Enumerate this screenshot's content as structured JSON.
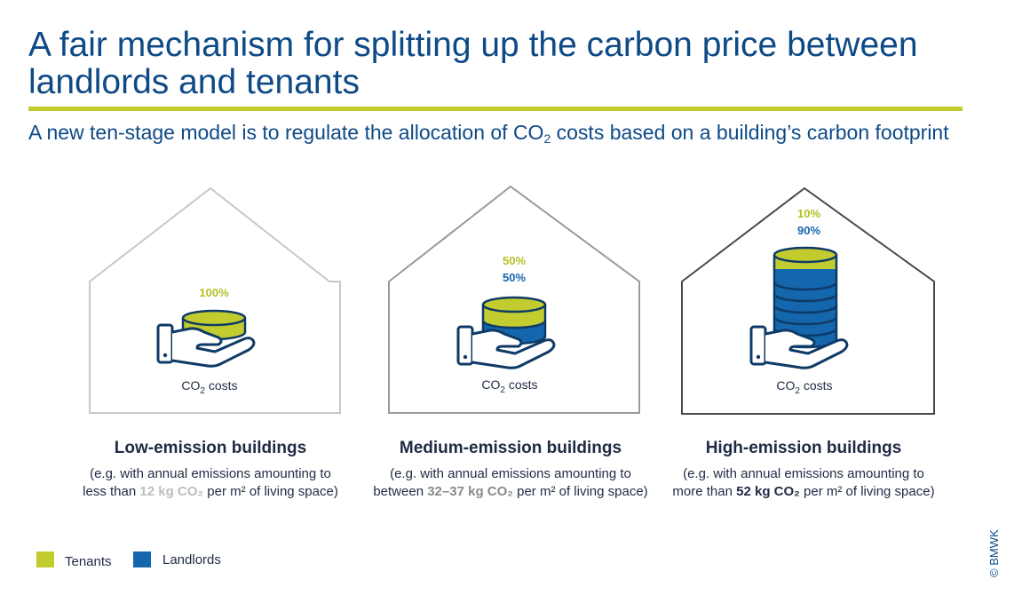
{
  "title": "A fair mechanism for splitting up the carbon price between landlords and tenants",
  "subtitle": {
    "before": "A new ten-stage model is to regulate the allocation of CO",
    "sub": "2",
    "after": " costs based on a building’s carbon footprint"
  },
  "co2_label": {
    "main": "CO",
    "sub": "2",
    "rest": " costs"
  },
  "buildings": [
    {
      "name": "Low-emission buildings",
      "tenant_pct": "100%",
      "landlord_pct": "",
      "desc_line1": "(e.g. with annual emissions amounting to",
      "desc_pre": "less than ",
      "desc_hl": "12 kg CO₂",
      "desc_post": " per m² of living  space)"
    },
    {
      "name": "Medium-emission buildings",
      "tenant_pct": "50%",
      "landlord_pct": "50%",
      "desc_line1": "(e.g. with annual emissions amounting to",
      "desc_pre": "between ",
      "desc_hl": "32–37 kg CO₂",
      "desc_post": " per m² of living  space)"
    },
    {
      "name": "High-emission buildings",
      "tenant_pct": "10%",
      "landlord_pct": "90%",
      "desc_line1": "(e.g. with annual emissions amounting to",
      "desc_pre": "more than ",
      "desc_hl": "52 kg CO₂",
      "desc_post": " per m² of living  space)"
    }
  ],
  "legend": {
    "tenants": "Tenants",
    "landlords": "Landlords"
  },
  "colors": {
    "tenants": "#c2cc2f",
    "landlords": "#1466ad",
    "title_blue": "#0e4a86",
    "outline_dark": "#0e3a66"
  },
  "icons": [
    "house-outline-icon",
    "hand-holding-coins-icon"
  ],
  "copyright": "© BMWK"
}
